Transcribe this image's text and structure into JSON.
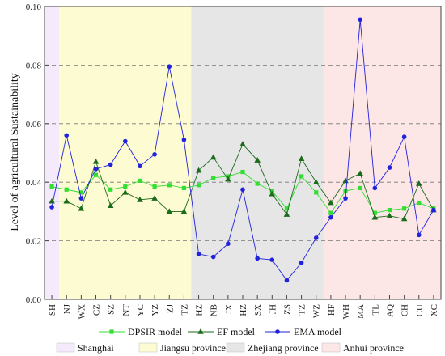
{
  "chart_data": {
    "type": "line",
    "ylabel": "Level of agricultural Sustainability",
    "xlabel": "",
    "ylim": [
      0,
      0.1
    ],
    "yticks": [
      "0.00",
      "0.02",
      "0.04",
      "0.06",
      "0.08",
      "0.10"
    ],
    "categories": [
      "SH",
      "NJ",
      "WX",
      "CZ",
      "SZ",
      "NT",
      "YC",
      "YZ",
      "ZJ",
      "TZ",
      "HZ",
      "NB",
      "JX",
      "HZ",
      "SX",
      "JH",
      "ZS",
      "TZ",
      "WZ",
      "HF",
      "WH",
      "MA",
      "TL",
      "AQ",
      "CH",
      "CU",
      "XC"
    ],
    "series": [
      {
        "name": "DPSIR model",
        "color": "#33dd33",
        "marker": "square",
        "values": [
          0.0385,
          0.0375,
          0.0365,
          0.0425,
          0.0375,
          0.0385,
          0.0405,
          0.0385,
          0.039,
          0.038,
          0.039,
          0.0415,
          0.042,
          0.0435,
          0.0395,
          0.037,
          0.031,
          0.042,
          0.0365,
          0.0295,
          0.037,
          0.038,
          0.0295,
          0.0305,
          0.031,
          0.033,
          0.031
        ]
      },
      {
        "name": "EF model",
        "color": "#1a6b1a",
        "marker": "triangle",
        "values": [
          0.0335,
          0.0335,
          0.031,
          0.047,
          0.032,
          0.0365,
          0.034,
          0.0345,
          0.03,
          0.03,
          0.044,
          0.0485,
          0.041,
          0.053,
          0.0475,
          0.036,
          0.029,
          0.048,
          0.04,
          0.033,
          0.0405,
          0.043,
          0.028,
          0.0285,
          0.0275,
          0.0395,
          0.0305
        ]
      },
      {
        "name": "EMA model",
        "color": "#2222dd",
        "marker": "circle",
        "values": [
          0.0315,
          0.056,
          0.0345,
          0.0445,
          0.046,
          0.054,
          0.0455,
          0.0495,
          0.0795,
          0.0545,
          0.0155,
          0.0145,
          0.019,
          0.0375,
          0.014,
          0.0135,
          0.0065,
          0.0125,
          0.021,
          0.028,
          0.0345,
          0.0955,
          0.038,
          0.045,
          0.0555,
          0.022,
          0.0305
        ]
      }
    ],
    "regions": [
      {
        "name": "Shanghai",
        "color": "#f4eafc",
        "start": 0,
        "end": 0
      },
      {
        "name": "Jiangsu province",
        "color": "#fdfbd2",
        "start": 1,
        "end": 9
      },
      {
        "name": "Zhejiang province",
        "color": "#e6e6e6",
        "start": 10,
        "end": 18
      },
      {
        "name": "Anhui province",
        "color": "#fde6e6",
        "start": 19,
        "end": 26
      }
    ],
    "grid": "horizontal-dashed",
    "legend_placement": "bottom"
  }
}
